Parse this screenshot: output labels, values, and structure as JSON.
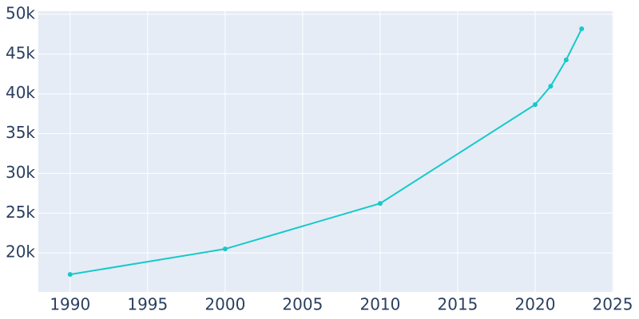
{
  "chart_data": {
    "type": "line",
    "x": [
      1990,
      2000,
      2010,
      2020,
      2021,
      2022,
      2023
    ],
    "series": [
      {
        "color": "#17c9c9",
        "values": [
          17290,
          20500,
          26220,
          38660,
          40960,
          44270,
          48180
        ]
      }
    ],
    "xlim": [
      1987.95,
      2025.05
    ],
    "xticks": [
      1990,
      1995,
      2000,
      2005,
      2010,
      2015,
      2020,
      2025
    ],
    "ylim": [
      15100,
      50400
    ],
    "yticks": [
      {
        "value": 20000,
        "label": "20k"
      },
      {
        "value": 25000,
        "label": "25k"
      },
      {
        "value": 30000,
        "label": "30k"
      },
      {
        "value": 35000,
        "label": "35k"
      },
      {
        "value": 40000,
        "label": "40k"
      },
      {
        "value": 45000,
        "label": "45k"
      },
      {
        "value": 50000,
        "label": "50k"
      }
    ],
    "grid": true
  }
}
